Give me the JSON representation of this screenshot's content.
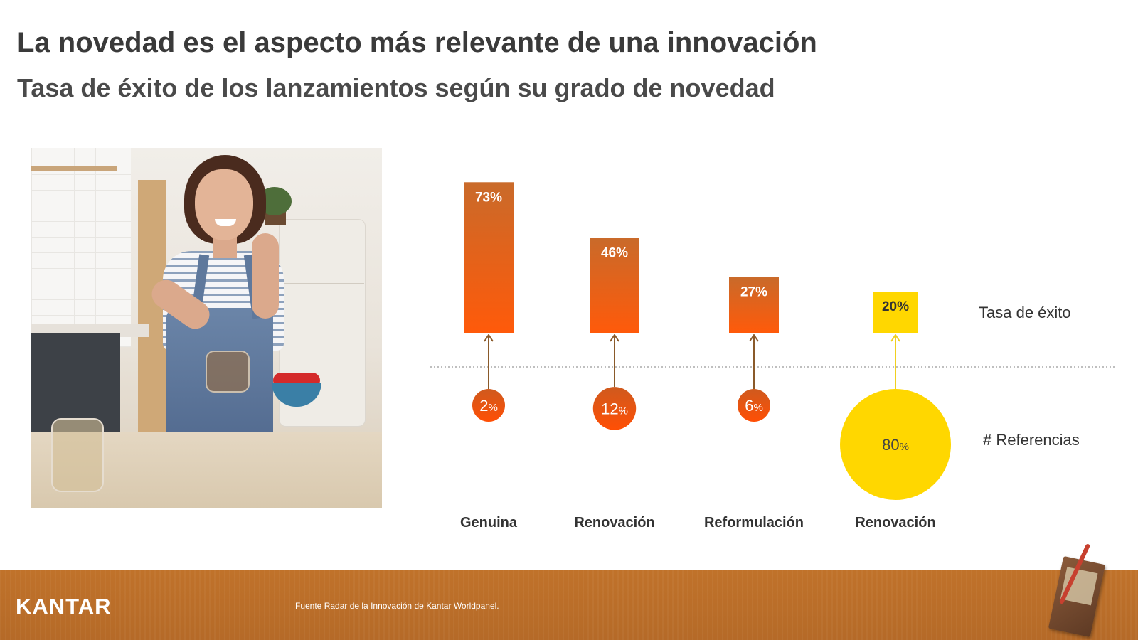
{
  "header": {
    "title": "La novedad es el aspecto más relevante de una innovación",
    "subtitle": "Tasa de éxito de los lanzamientos según su grado de novedad"
  },
  "chart_data": {
    "type": "bar",
    "categories": [
      "Genuina",
      "Renovación",
      "Reformulación",
      "Renovación"
    ],
    "series": [
      {
        "name": "Tasa de éxito",
        "values": [
          73,
          46,
          27,
          20
        ],
        "labels": [
          "73%",
          "46%",
          "27%",
          "20%"
        ]
      },
      {
        "name": "# Referencias",
        "values": [
          2,
          12,
          6,
          80
        ],
        "numbers": [
          "2",
          "12",
          "6",
          "80"
        ]
      }
    ],
    "percent_sign": "%",
    "colors": {
      "orange_top": "#c96a2a",
      "orange_bottom": "#ff5a0a",
      "yellow": "#ffd700",
      "arrow_orange": "#8a5a2a",
      "arrow_yellow": "#f0d020",
      "divider": "#aaaaaa"
    }
  },
  "footer": {
    "logo": "KANTAR",
    "source": "Fuente Radar de la Innovación de Kantar Worldpanel."
  }
}
